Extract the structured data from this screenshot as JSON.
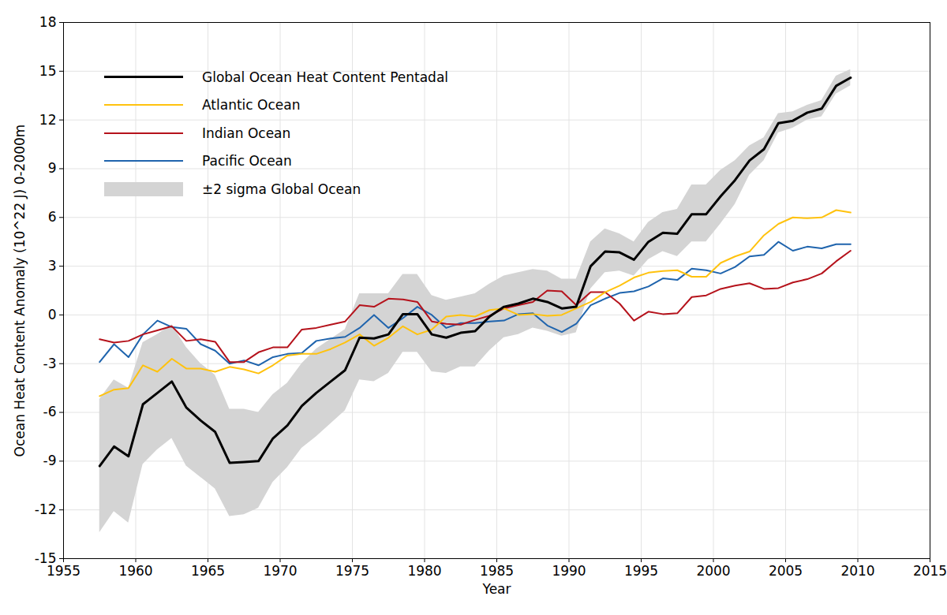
{
  "chart_data": {
    "type": "line",
    "x_label": "Year",
    "y_label": "Ocean Heat Content Anomaly (10^22 J) 0-2000m",
    "x": [
      1957.5,
      1958.5,
      1959.5,
      1960.5,
      1961.5,
      1962.5,
      1963.5,
      1964.5,
      1965.5,
      1966.5,
      1967.5,
      1968.5,
      1969.5,
      1970.5,
      1971.5,
      1972.5,
      1973.5,
      1974.5,
      1975.5,
      1976.5,
      1977.5,
      1978.5,
      1979.5,
      1980.5,
      1981.5,
      1982.5,
      1983.5,
      1984.5,
      1985.5,
      1986.5,
      1987.5,
      1988.5,
      1989.5,
      1990.5,
      1991.5,
      1992.5,
      1993.5,
      1994.5,
      1995.5,
      1996.5,
      1997.5,
      1998.5,
      1999.5,
      2000.5,
      2001.5,
      2002.5,
      2003.5,
      2004.5,
      2005.5,
      2006.5,
      2007.5,
      2008.5,
      2009.5
    ],
    "series": [
      {
        "name": "Global Ocean Heat Content Pentadal",
        "color": "#000000",
        "values": [
          -9.3,
          -8.1,
          -8.7,
          -5.5,
          -4.8,
          -4.1,
          -5.7,
          -6.5,
          -7.2,
          -9.1,
          -9.05,
          -9.0,
          -7.6,
          -6.8,
          -5.6,
          -4.8,
          -4.1,
          -3.4,
          -1.4,
          -1.45,
          -1.2,
          0.05,
          0.05,
          -1.2,
          -1.4,
          -1.1,
          -1.0,
          -0.1,
          0.5,
          0.7,
          1.0,
          0.8,
          0.4,
          0.5,
          3.0,
          3.9,
          3.85,
          3.4,
          4.5,
          5.05,
          5.0,
          6.2,
          6.2,
          7.3,
          8.3,
          9.5,
          10.2,
          11.8,
          11.95,
          12.45,
          12.7,
          14.1,
          14.6
        ]
      },
      {
        "name": "Atlantic Ocean",
        "color": "#ffc20e",
        "values": [
          -5.0,
          -4.6,
          -4.5,
          -3.1,
          -3.5,
          -2.7,
          -3.3,
          -3.3,
          -3.5,
          -3.2,
          -3.35,
          -3.6,
          -3.1,
          -2.5,
          -2.4,
          -2.4,
          -2.1,
          -1.7,
          -1.2,
          -1.9,
          -1.4,
          -0.7,
          -1.2,
          -0.9,
          -0.1,
          0.0,
          -0.1,
          0.3,
          0.4,
          0.0,
          0.05,
          -0.05,
          0.0,
          0.4,
          0.8,
          1.4,
          1.8,
          2.3,
          2.6,
          2.7,
          2.75,
          2.35,
          2.35,
          3.2,
          3.6,
          3.9,
          4.9,
          5.6,
          6.0,
          5.95,
          6.0,
          6.45,
          6.3
        ]
      },
      {
        "name": "Indian Ocean",
        "color": "#b5121b",
        "values": [
          -1.5,
          -1.7,
          -1.6,
          -1.2,
          -0.95,
          -0.7,
          -1.6,
          -1.5,
          -1.65,
          -2.9,
          -2.9,
          -2.3,
          -2.0,
          -2.0,
          -0.9,
          -0.8,
          -0.6,
          -0.4,
          0.6,
          0.5,
          1.0,
          0.95,
          0.8,
          -0.4,
          -0.55,
          -0.6,
          -0.3,
          -0.05,
          0.4,
          0.6,
          0.8,
          1.5,
          1.45,
          0.6,
          1.4,
          1.4,
          0.7,
          -0.35,
          0.2,
          0.05,
          0.1,
          1.1,
          1.2,
          1.6,
          1.8,
          1.95,
          1.6,
          1.65,
          2.0,
          2.2,
          2.55,
          3.3,
          3.95
        ]
      },
      {
        "name": "Pacific Ocean",
        "color": "#1f64ad",
        "values": [
          -2.9,
          -1.8,
          -2.6,
          -1.2,
          -0.35,
          -0.75,
          -0.85,
          -1.8,
          -2.2,
          -3.0,
          -2.8,
          -3.1,
          -2.6,
          -2.4,
          -2.35,
          -1.6,
          -1.45,
          -1.35,
          -0.8,
          0.0,
          -0.8,
          -0.2,
          0.5,
          0.0,
          -0.8,
          -0.5,
          -0.5,
          -0.4,
          -0.35,
          0.05,
          0.1,
          -0.65,
          -1.05,
          -0.55,
          0.6,
          1.0,
          1.35,
          1.45,
          1.75,
          2.25,
          2.15,
          2.85,
          2.75,
          2.55,
          2.95,
          3.6,
          3.7,
          4.5,
          3.95,
          4.2,
          4.1,
          4.35,
          4.35
        ]
      }
    ],
    "band": {
      "name": "±2 sigma Global Ocean",
      "color": "#d4d4d4",
      "type": "area",
      "lower": [
        -13.4,
        -12.1,
        -12.8,
        -9.2,
        -8.3,
        -7.6,
        -9.3,
        -10.0,
        -10.7,
        -12.4,
        -12.3,
        -11.9,
        -10.3,
        -9.4,
        -8.2,
        -7.5,
        -6.7,
        -5.9,
        -4.0,
        -4.1,
        -3.6,
        -2.3,
        -2.3,
        -3.5,
        -3.6,
        -3.2,
        -3.2,
        -2.2,
        -1.4,
        -1.2,
        -0.8,
        -1.0,
        -1.3,
        -1.1,
        1.6,
        2.6,
        2.7,
        2.4,
        3.4,
        3.9,
        3.6,
        4.5,
        4.5,
        5.6,
        6.8,
        8.6,
        9.5,
        11.2,
        11.5,
        12.0,
        12.2,
        13.6,
        14.1
      ],
      "upper": [
        -5.2,
        -4.0,
        -4.5,
        -1.7,
        -1.2,
        -0.6,
        -2.0,
        -3.0,
        -3.7,
        -5.8,
        -5.8,
        -6.0,
        -4.9,
        -4.2,
        -3.0,
        -2.1,
        -1.5,
        -0.9,
        1.3,
        1.3,
        1.3,
        2.5,
        2.5,
        1.2,
        0.9,
        1.1,
        1.3,
        1.9,
        2.4,
        2.6,
        2.8,
        2.7,
        2.2,
        2.2,
        4.5,
        5.3,
        5.0,
        4.5,
        5.7,
        6.3,
        6.5,
        8.0,
        8.0,
        8.9,
        9.5,
        10.4,
        10.9,
        12.4,
        12.5,
        12.9,
        13.2,
        14.7,
        15.1
      ]
    },
    "xlim": [
      1955,
      2015
    ],
    "xticks": [
      1955,
      1960,
      1965,
      1970,
      1975,
      1980,
      1985,
      1990,
      1995,
      2000,
      2005,
      2010,
      2015
    ],
    "ylim": [
      -15,
      18
    ],
    "yticks": [
      -15,
      -12,
      -9,
      -6,
      -3,
      0,
      3,
      6,
      9,
      12,
      15,
      18
    ],
    "grid": true,
    "legend": "top-left"
  }
}
